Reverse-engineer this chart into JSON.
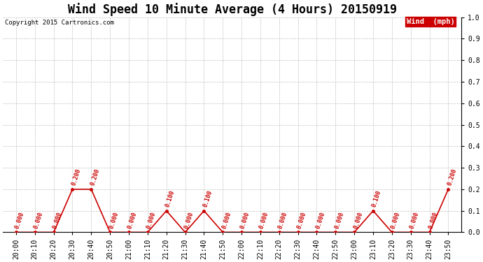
{
  "title": "Wind Speed 10 Minute Average (4 Hours) 20150919",
  "copyright": "Copyright 2015 Cartronics.com",
  "legend_label": "Wind  (mph)",
  "ylim_min": 0.0,
  "ylim_max": 1.0,
  "yticks": [
    0.0,
    0.1,
    0.2,
    0.3,
    0.4,
    0.5,
    0.6,
    0.7,
    0.8,
    0.9,
    1.0
  ],
  "x_labels": [
    "20:00",
    "20:10",
    "20:20",
    "20:30",
    "20:40",
    "20:50",
    "21:00",
    "21:10",
    "21:20",
    "21:30",
    "21:40",
    "21:50",
    "22:00",
    "22:10",
    "22:20",
    "22:30",
    "22:40",
    "22:50",
    "23:00",
    "23:10",
    "23:20",
    "23:30",
    "23:40",
    "23:50"
  ],
  "wind_values": [
    0.0,
    0.0,
    0.0,
    0.2,
    0.2,
    0.0,
    0.0,
    0.0,
    0.1,
    0.0,
    0.1,
    0.0,
    0.0,
    0.0,
    0.0,
    0.0,
    0.0,
    0.0,
    0.0,
    0.1,
    0.0,
    0.0,
    0.0,
    0.2
  ],
  "line_color": "#cc0000",
  "marker_color": "#cc0000",
  "bg_color": "#ffffff",
  "grid_color": "#c0c0c0",
  "annotation_color": "#cc0000",
  "title_fontsize": 12,
  "annotation_fontsize": 6,
  "tick_fontsize": 7,
  "legend_bg": "#cc0000",
  "legend_fg": "#ffffff"
}
